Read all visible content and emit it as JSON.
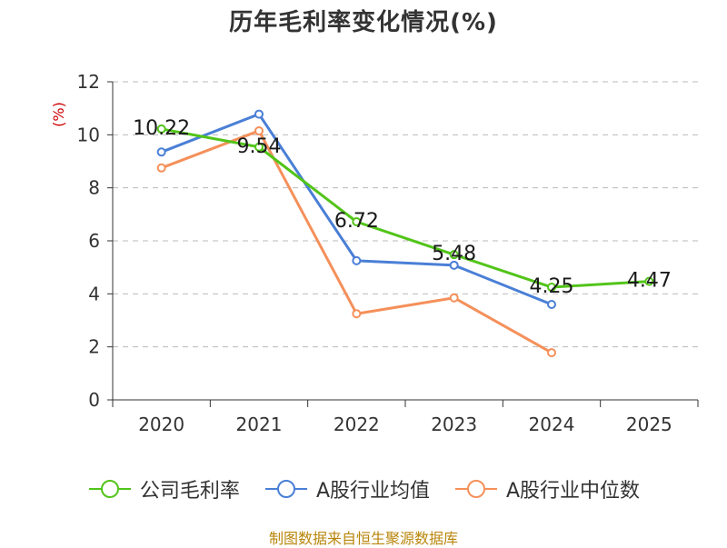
{
  "chart_data": {
    "type": "line",
    "title": "历年毛利率变化情况(%)",
    "unit_label": "(%)",
    "categories": [
      "2020",
      "2021",
      "2022",
      "2023",
      "2024",
      "2025"
    ],
    "ylim": [
      0,
      12
    ],
    "yticks": [
      0,
      2,
      4,
      6,
      8,
      10,
      12
    ],
    "grid": true,
    "legend_position": "bottom",
    "series": [
      {
        "name": "公司毛利率",
        "color": "#52c41a",
        "values": [
          10.22,
          9.54,
          6.72,
          5.48,
          4.25,
          4.47
        ],
        "labels": [
          "10.22",
          "9.54",
          "6.72",
          "5.48",
          "4.25",
          "4.47"
        ]
      },
      {
        "name": "A股行业均值",
        "color": "#4a7fd6",
        "values": [
          9.35,
          10.78,
          5.25,
          5.08,
          3.6,
          null
        ]
      },
      {
        "name": "A股行业中位数",
        "color": "#f5905a",
        "values": [
          8.75,
          10.15,
          3.25,
          3.85,
          1.78,
          null
        ]
      }
    ]
  },
  "source": "制图数据来自恒生聚源数据库"
}
